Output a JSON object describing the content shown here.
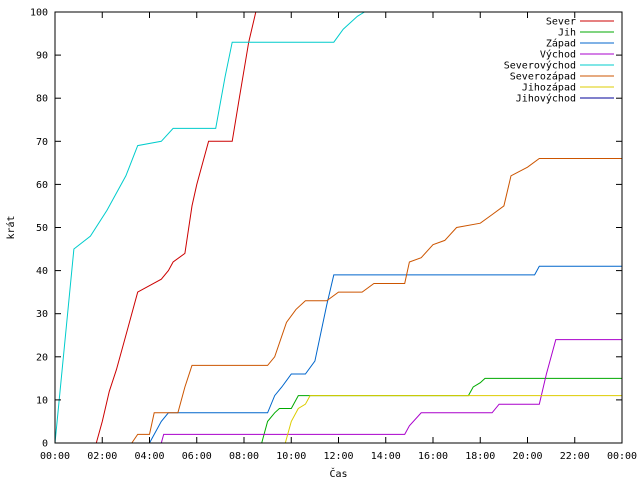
{
  "chart_data": {
    "type": "line",
    "title": "",
    "xlabel": "Čas",
    "ylabel": "krát",
    "xlim": [
      0,
      24
    ],
    "ylim": [
      0,
      100
    ],
    "x_ticks": [
      "00:00",
      "02:00",
      "04:00",
      "06:00",
      "08:00",
      "10:00",
      "12:00",
      "14:00",
      "16:00",
      "18:00",
      "20:00",
      "22:00",
      "00:00"
    ],
    "y_ticks": [
      "0",
      "10",
      "20",
      "30",
      "40",
      "50",
      "60",
      "70",
      "80",
      "90",
      "100"
    ],
    "grid": false,
    "legend_position": "top-right",
    "series": [
      {
        "name": "Sever",
        "color": "#cc0000",
        "points": [
          [
            1.75,
            0
          ],
          [
            2.0,
            5
          ],
          [
            2.3,
            12
          ],
          [
            2.6,
            17
          ],
          [
            3.0,
            25
          ],
          [
            3.5,
            35
          ],
          [
            4.5,
            38
          ],
          [
            4.8,
            40
          ],
          [
            5.0,
            42
          ],
          [
            5.5,
            44
          ],
          [
            5.8,
            55
          ],
          [
            6.0,
            60
          ],
          [
            6.5,
            70
          ],
          [
            7.5,
            70
          ],
          [
            7.8,
            80
          ],
          [
            8.2,
            93
          ],
          [
            8.5,
            100
          ]
        ]
      },
      {
        "name": "Jih",
        "color": "#00aa00",
        "points": [
          [
            8.75,
            0
          ],
          [
            9.0,
            5
          ],
          [
            9.3,
            7
          ],
          [
            9.5,
            8
          ],
          [
            10.0,
            8
          ],
          [
            10.3,
            11
          ],
          [
            17.5,
            11
          ],
          [
            17.7,
            13
          ],
          [
            18.0,
            14
          ],
          [
            18.2,
            15
          ],
          [
            24,
            15
          ]
        ]
      },
      {
        "name": "Západ",
        "color": "#0066cc",
        "points": [
          [
            4.0,
            0
          ],
          [
            4.5,
            5
          ],
          [
            4.8,
            7
          ],
          [
            9.0,
            7
          ],
          [
            9.3,
            11
          ],
          [
            9.6,
            13
          ],
          [
            10.0,
            16
          ],
          [
            10.6,
            16
          ],
          [
            11.0,
            19
          ],
          [
            11.5,
            32
          ],
          [
            11.8,
            39
          ],
          [
            20.3,
            39
          ],
          [
            20.5,
            41
          ],
          [
            24,
            41
          ]
        ]
      },
      {
        "name": "Východ",
        "color": "#aa00cc",
        "points": [
          [
            4.5,
            0
          ],
          [
            4.6,
            2
          ],
          [
            14.8,
            2
          ],
          [
            15.0,
            4
          ],
          [
            15.5,
            7
          ],
          [
            18.5,
            7
          ],
          [
            18.8,
            9
          ],
          [
            20.5,
            9
          ],
          [
            20.8,
            16
          ],
          [
            21.2,
            24
          ],
          [
            24,
            24
          ]
        ]
      },
      {
        "name": "Severovýchod",
        "color": "#00cccc",
        "points": [
          [
            0,
            0
          ],
          [
            0.8,
            45
          ],
          [
            1.5,
            48
          ],
          [
            2.2,
            54
          ],
          [
            3.0,
            62
          ],
          [
            3.5,
            69
          ],
          [
            4.5,
            70
          ],
          [
            5.0,
            73
          ],
          [
            6.8,
            73
          ],
          [
            7.2,
            85
          ],
          [
            7.5,
            93
          ],
          [
            11.8,
            93
          ],
          [
            12.2,
            96
          ],
          [
            12.8,
            99
          ],
          [
            13.1,
            100
          ]
        ]
      },
      {
        "name": "Severozápad",
        "color": "#cc5500",
        "points": [
          [
            3.25,
            0
          ],
          [
            3.5,
            2
          ],
          [
            4.0,
            2
          ],
          [
            4.2,
            7
          ],
          [
            5.2,
            7
          ],
          [
            5.5,
            13
          ],
          [
            5.8,
            18
          ],
          [
            9.0,
            18
          ],
          [
            9.3,
            20
          ],
          [
            9.8,
            28
          ],
          [
            10.2,
            31
          ],
          [
            10.6,
            33
          ],
          [
            11.5,
            33
          ],
          [
            12.0,
            35
          ],
          [
            13.0,
            35
          ],
          [
            13.5,
            37
          ],
          [
            14.8,
            37
          ],
          [
            15.0,
            42
          ],
          [
            15.5,
            43
          ],
          [
            16.0,
            46
          ],
          [
            16.5,
            47
          ],
          [
            17.0,
            50
          ],
          [
            18.0,
            51
          ],
          [
            18.5,
            53
          ],
          [
            19.0,
            55
          ],
          [
            19.3,
            62
          ],
          [
            20.0,
            64
          ],
          [
            20.5,
            66
          ],
          [
            24,
            66
          ]
        ]
      },
      {
        "name": "Jihozápad",
        "color": "#ddcc00",
        "points": [
          [
            9.75,
            0
          ],
          [
            10.0,
            5
          ],
          [
            10.3,
            8
          ],
          [
            10.6,
            9
          ],
          [
            10.8,
            11
          ],
          [
            24,
            11
          ]
        ]
      },
      {
        "name": "Jihovýchod",
        "color": "#000099",
        "points": []
      }
    ]
  }
}
